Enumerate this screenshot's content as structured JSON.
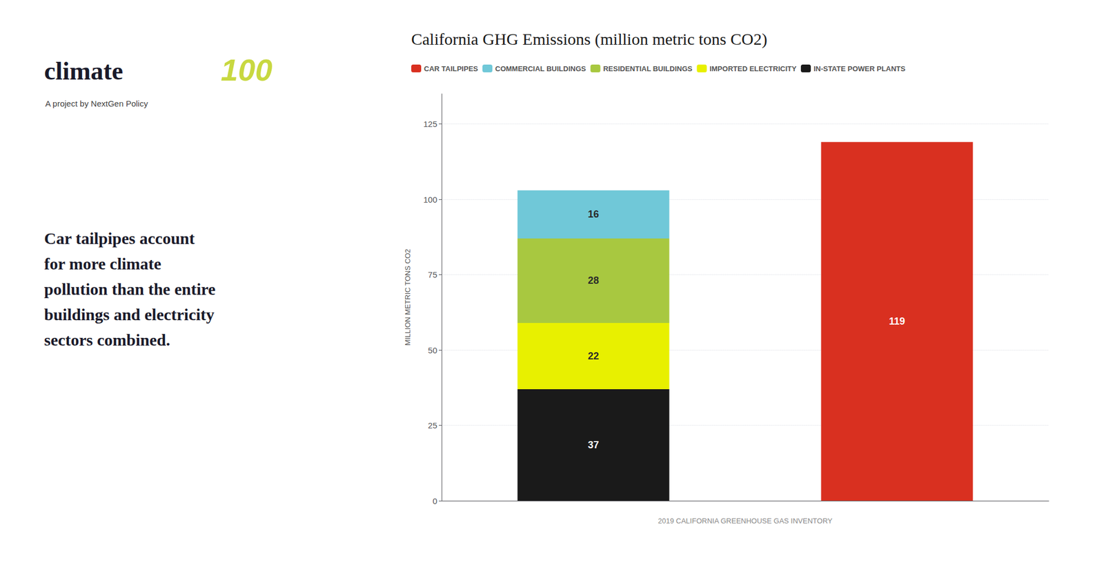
{
  "chart_data": {
    "type": "bar",
    "title": "California GHG Emissions (million metric tons CO2)",
    "categories": [
      null,
      null
    ],
    "series": [
      {
        "name": "IN-STATE POWER PLANTS",
        "color": "#1a1a1a",
        "values": [
          37,
          null
        ]
      },
      {
        "name": "IMPORTED ELECTRICITY",
        "color": "#e8f000",
        "values": [
          22,
          null
        ]
      },
      {
        "name": "RESIDENTIAL BUILDINGS",
        "color": "#a8c840",
        "values": [
          28,
          null
        ]
      },
      {
        "name": "COMMERCIAL BUILDINGS",
        "color": "#70c8d8",
        "values": [
          16,
          null
        ]
      },
      {
        "name": "CAR TAILPIPES",
        "color": "#d93020",
        "values": [
          null,
          119
        ]
      }
    ],
    "stacked": true,
    "data_labels": true,
    "ylabel": "MILLION METRIC TONS CO2",
    "ylim": [
      0,
      135
    ],
    "yticks": [
      0,
      25,
      50,
      75,
      100,
      125
    ],
    "grid": true,
    "legend": "upper left",
    "tick_labels": "y",
    "annotations": [
      "Car tailpipes account\nfor more climate\npollution than the entire\nbuildings and electricity\nsectors combined.",
      "climate",
      "100",
      "A project by NextGen Policy",
      "2019 CALIFORNIA GREENHOUSE GAS INVENTORY"
    ]
  }
}
